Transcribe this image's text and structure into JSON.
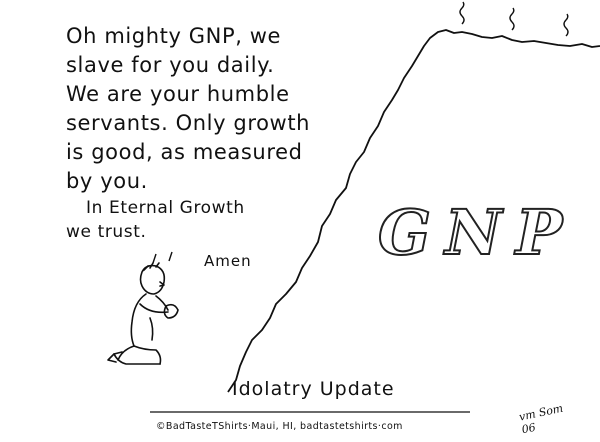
{
  "prayer": {
    "lines": [
      "Oh mighty GNP, we",
      "slave for you daily.",
      "We are your humble",
      "servants. Only growth",
      "is good, as measured",
      "by you."
    ],
    "closing": [
      "In Eternal Growth",
      "we trust."
    ],
    "amen": "Amen"
  },
  "mountain_label": "GNP",
  "caption": "Idolatry Update",
  "credit": "©BadTasteTShirts·Maui, HI, badtastetshirts·com",
  "signature": [
    "vm Som",
    "06"
  ]
}
